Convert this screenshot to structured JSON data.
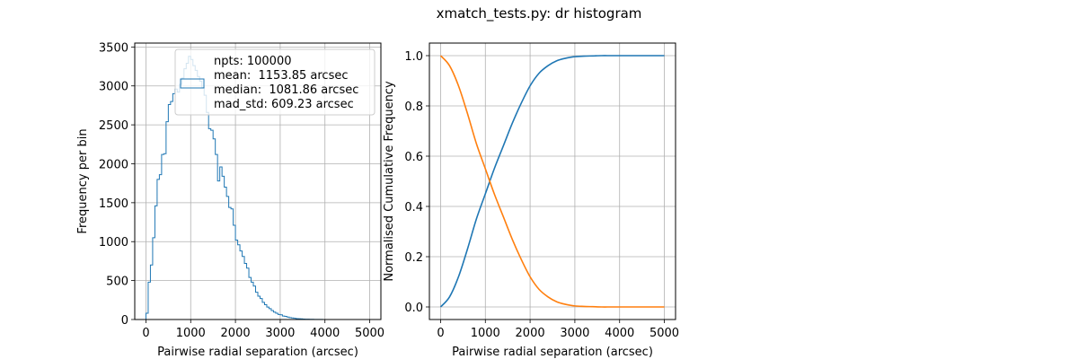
{
  "figure_title": "xmatch_tests.py: dr histogram",
  "colors": {
    "blue": "#1f77b4",
    "orange": "#ff7f0e",
    "grid": "#b0b0b0"
  },
  "chart_data": [
    {
      "type": "histogram",
      "xlabel": "Pairwise radial separation (arcsec)",
      "ylabel": "Frequency per bin",
      "xlim": [
        -250,
        5250
      ],
      "ylim": [
        0,
        3550
      ],
      "xticks": [
        0,
        1000,
        2000,
        3000,
        4000,
        5000
      ],
      "yticks": [
        0,
        500,
        1000,
        1500,
        2000,
        2500,
        3000,
        3500
      ],
      "grid": true,
      "bin_width": 50,
      "legend": {
        "placement": "top-right",
        "lines": [
          "npts: 100000",
          "mean:  1153.85 arcsec",
          "median:  1081.86 arcsec",
          "mad_std: 609.23 arcsec"
        ]
      },
      "bins": [
        {
          "x": 0,
          "y": 80
        },
        {
          "x": 50,
          "y": 480
        },
        {
          "x": 100,
          "y": 700
        },
        {
          "x": 150,
          "y": 1050
        },
        {
          "x": 200,
          "y": 1460
        },
        {
          "x": 250,
          "y": 1800
        },
        {
          "x": 300,
          "y": 1860
        },
        {
          "x": 350,
          "y": 2120
        },
        {
          "x": 400,
          "y": 2130
        },
        {
          "x": 450,
          "y": 2540
        },
        {
          "x": 500,
          "y": 2760
        },
        {
          "x": 550,
          "y": 2800
        },
        {
          "x": 600,
          "y": 2900
        },
        {
          "x": 650,
          "y": 2960
        },
        {
          "x": 700,
          "y": 2920
        },
        {
          "x": 750,
          "y": 3020
        },
        {
          "x": 800,
          "y": 3100
        },
        {
          "x": 850,
          "y": 3220
        },
        {
          "x": 900,
          "y": 3290
        },
        {
          "x": 950,
          "y": 3380
        },
        {
          "x": 1000,
          "y": 3340
        },
        {
          "x": 1050,
          "y": 3260
        },
        {
          "x": 1100,
          "y": 3200
        },
        {
          "x": 1150,
          "y": 3120
        },
        {
          "x": 1200,
          "y": 3060
        },
        {
          "x": 1250,
          "y": 2980
        },
        {
          "x": 1300,
          "y": 2880
        },
        {
          "x": 1350,
          "y": 2660
        },
        {
          "x": 1400,
          "y": 2450
        },
        {
          "x": 1450,
          "y": 2430
        },
        {
          "x": 1500,
          "y": 2320
        },
        {
          "x": 1550,
          "y": 2120
        },
        {
          "x": 1600,
          "y": 1780
        },
        {
          "x": 1650,
          "y": 1960
        },
        {
          "x": 1700,
          "y": 1840
        },
        {
          "x": 1750,
          "y": 1700
        },
        {
          "x": 1800,
          "y": 1580
        },
        {
          "x": 1850,
          "y": 1440
        },
        {
          "x": 1900,
          "y": 1420
        },
        {
          "x": 1950,
          "y": 1210
        },
        {
          "x": 2000,
          "y": 1020
        },
        {
          "x": 2050,
          "y": 960
        },
        {
          "x": 2100,
          "y": 880
        },
        {
          "x": 2150,
          "y": 810
        },
        {
          "x": 2200,
          "y": 720
        },
        {
          "x": 2250,
          "y": 660
        },
        {
          "x": 2300,
          "y": 540
        },
        {
          "x": 2350,
          "y": 480
        },
        {
          "x": 2400,
          "y": 430
        },
        {
          "x": 2450,
          "y": 350
        },
        {
          "x": 2500,
          "y": 300
        },
        {
          "x": 2550,
          "y": 270
        },
        {
          "x": 2600,
          "y": 220
        },
        {
          "x": 2650,
          "y": 190
        },
        {
          "x": 2700,
          "y": 160
        },
        {
          "x": 2750,
          "y": 140
        },
        {
          "x": 2800,
          "y": 115
        },
        {
          "x": 2850,
          "y": 95
        },
        {
          "x": 2900,
          "y": 80
        },
        {
          "x": 2950,
          "y": 65
        },
        {
          "x": 3000,
          "y": 60
        },
        {
          "x": 3050,
          "y": 45
        },
        {
          "x": 3100,
          "y": 40
        },
        {
          "x": 3150,
          "y": 32
        },
        {
          "x": 3200,
          "y": 25
        },
        {
          "x": 3250,
          "y": 20
        },
        {
          "x": 3300,
          "y": 16
        },
        {
          "x": 3350,
          "y": 12
        },
        {
          "x": 3400,
          "y": 10
        },
        {
          "x": 3450,
          "y": 8
        },
        {
          "x": 3500,
          "y": 6
        },
        {
          "x": 3550,
          "y": 5
        },
        {
          "x": 3600,
          "y": 4
        },
        {
          "x": 3650,
          "y": 3
        },
        {
          "x": 3700,
          "y": 3
        },
        {
          "x": 3750,
          "y": 2
        },
        {
          "x": 3800,
          "y": 2
        },
        {
          "x": 3850,
          "y": 1
        },
        {
          "x": 3900,
          "y": 1
        }
      ]
    },
    {
      "type": "line",
      "xlabel": "Pairwise radial separation (arcsec)",
      "ylabel": "Normalised Cumulative Frequency",
      "xlim": [
        -250,
        5250
      ],
      "ylim": [
        -0.05,
        1.05
      ],
      "xticks": [
        0,
        1000,
        2000,
        3000,
        4000,
        5000
      ],
      "yticks": [
        0.0,
        0.2,
        0.4,
        0.6,
        0.8,
        1.0
      ],
      "ytick_labels": [
        "0.0",
        "0.2",
        "0.4",
        "0.6",
        "0.8",
        "1.0"
      ],
      "grid": true,
      "x": [
        0,
        200,
        400,
        600,
        800,
        1000,
        1200,
        1400,
        1600,
        1800,
        2000,
        2200,
        2400,
        2600,
        2800,
        3000,
        3200,
        3400,
        3600,
        3800,
        4000,
        4200,
        4400,
        4600,
        4800,
        5000
      ],
      "series": [
        {
          "color": "#1f77b4",
          "values": [
            0.0,
            0.04,
            0.12,
            0.23,
            0.35,
            0.45,
            0.55,
            0.64,
            0.73,
            0.81,
            0.88,
            0.93,
            0.96,
            0.98,
            0.99,
            0.996,
            0.998,
            0.999,
            1.0,
            1.0,
            1.0,
            1.0,
            1.0,
            1.0,
            1.0,
            1.0
          ]
        },
        {
          "color": "#ff7f0e",
          "values": [
            1.0,
            0.96,
            0.88,
            0.77,
            0.65,
            0.55,
            0.45,
            0.36,
            0.27,
            0.19,
            0.12,
            0.07,
            0.04,
            0.02,
            0.01,
            0.004,
            0.002,
            0.001,
            0.0,
            0.0,
            0.0,
            0.0,
            0.0,
            0.0,
            0.0,
            0.0
          ]
        }
      ]
    }
  ]
}
